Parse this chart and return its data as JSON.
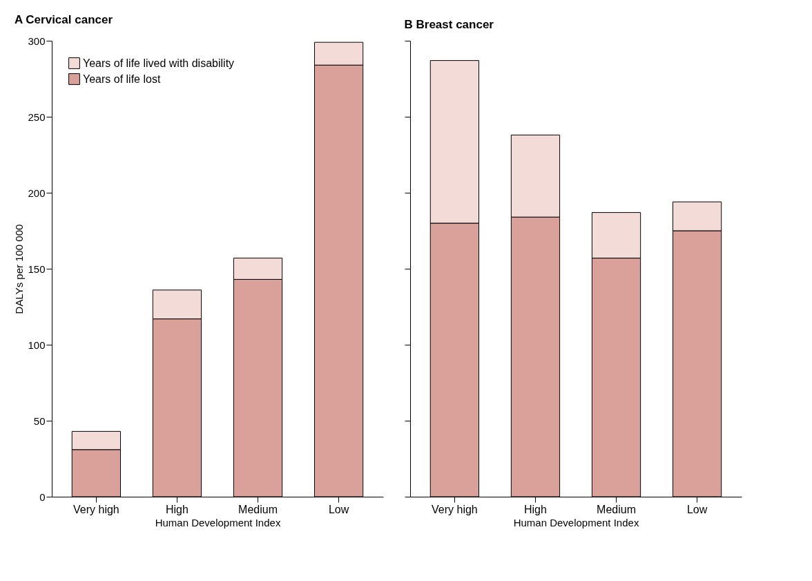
{
  "chart_data": [
    {
      "type": "bar",
      "title": "A Cervical cancer",
      "xlabel": "Human Development Index",
      "ylabel": "DALYs per 100 000",
      "categories": [
        "Very high",
        "High",
        "Medium",
        "Low"
      ],
      "stacked": true,
      "ylim": [
        0,
        300
      ],
      "yticks": [
        0,
        50,
        100,
        150,
        200,
        250,
        300
      ],
      "grid": false,
      "legend": "top left",
      "series": [
        {
          "name": "Years of life lost",
          "color": "#d9a19a",
          "values": [
            31,
            117,
            143,
            284
          ]
        },
        {
          "name": "Years of life lived with disability",
          "color": "#f3dcd8",
          "values": [
            12,
            19,
            14,
            15
          ]
        }
      ]
    },
    {
      "type": "bar",
      "title": "B Breast cancer",
      "xlabel": "Human Development Index",
      "categories": [
        "Very high",
        "High",
        "Medium",
        "Low"
      ],
      "stacked": true,
      "ylim": [
        0,
        300
      ],
      "yticks": [
        0,
        50,
        100,
        150,
        200,
        250,
        300
      ],
      "grid": false,
      "tick_labels": "x",
      "series": [
        {
          "color": "#d9a19a",
          "values": [
            180,
            184,
            157,
            175
          ]
        },
        {
          "color": "#f3dcd8",
          "values": [
            107,
            54,
            30,
            19
          ]
        }
      ]
    }
  ]
}
